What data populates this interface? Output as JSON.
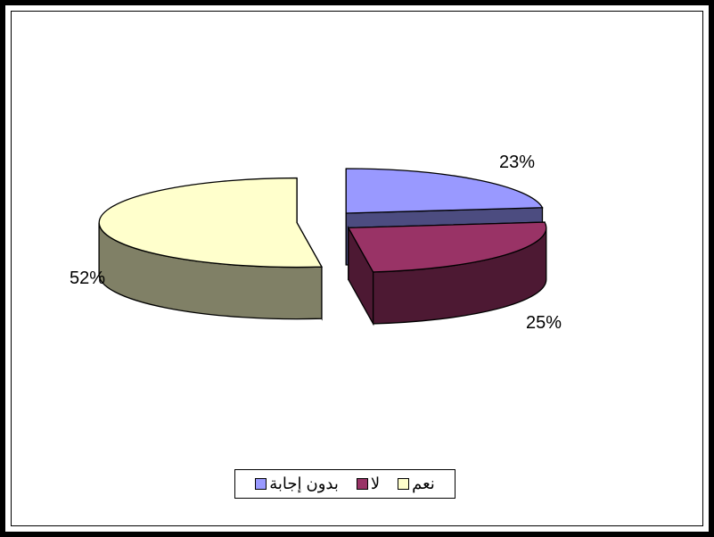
{
  "chart_data": {
    "type": "pie",
    "style": "3d-exploded",
    "categories": [
      "بدون إجابة",
      "لا",
      "نعم"
    ],
    "values": [
      23,
      25,
      52
    ],
    "value_labels": [
      "23%",
      "25%",
      "52%"
    ],
    "colors": {
      "top": [
        "#9999ff",
        "#993366",
        "#ffffcc"
      ],
      "side": [
        "#4c4c80",
        "#4d1933",
        "#808066"
      ]
    },
    "legend": {
      "placement": "bottom",
      "items": [
        {
          "label": "بدون إجابة",
          "color": "#9999ff"
        },
        {
          "label": "لا",
          "color": "#993366"
        },
        {
          "label": "نعم",
          "color": "#ffffcc"
        }
      ]
    }
  }
}
